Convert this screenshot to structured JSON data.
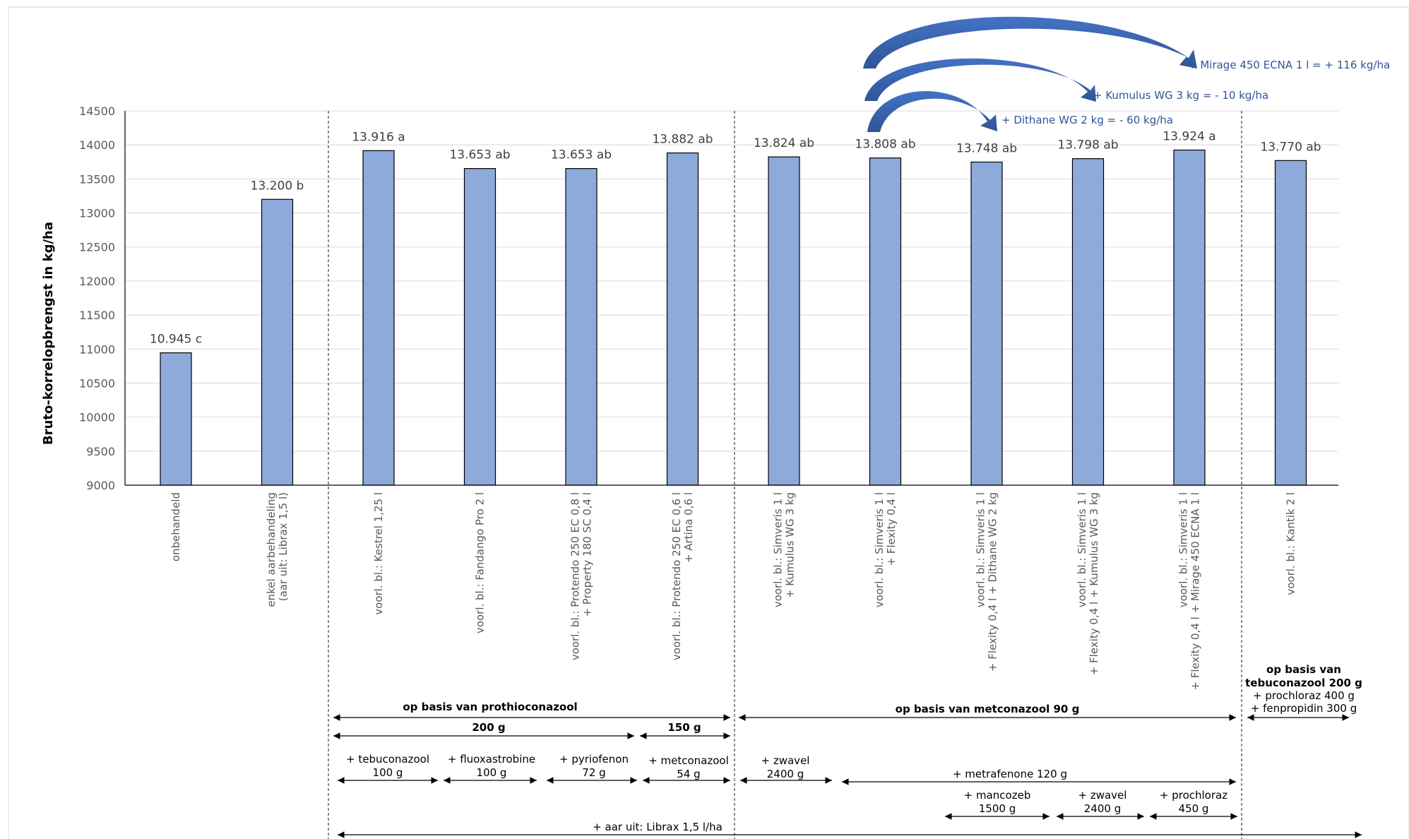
{
  "chart_data": {
    "type": "bar",
    "ylabel": "Bruto-korrelopbrengst in kg/ha",
    "ylim": [
      9000,
      14500
    ],
    "yticks": [
      "9000",
      "9500",
      "10000",
      "10500",
      "11000",
      "11500",
      "12000",
      "12500",
      "13000",
      "13500",
      "14000",
      "14500"
    ],
    "grid": true,
    "color": "#8eaadb",
    "categories": [
      [
        "onbehandeld"
      ],
      [
        "enkel aarbehandeling",
        "(aar uit: Librax 1,5 l)"
      ],
      [
        "voorl. bl.: Kestrel 1,25 l"
      ],
      [
        "voorl. bl.: Fandango Pro 2 l"
      ],
      [
        "voorl. bl.: Protendo 250 EC 0,8 l",
        "+ Property 180 SC 0,4 l"
      ],
      [
        "voorl. bl.: Protendo 250 EC 0,6 l",
        "+ Artina 0,6 l"
      ],
      [
        "voorl. bl.: Simveris 1 l",
        "+ Kumulus WG 3 kg"
      ],
      [
        "voorl. bl.: Simveris 1 l",
        "+ Flexity 0,4 l"
      ],
      [
        "voorl. bl.: Simveris 1 l",
        "+ Flexity 0,4 l + Dithane WG 2 kg"
      ],
      [
        "voorl. bl.: Simveris 1 l",
        "+ Flexity 0,4 l + Kumulus WG 3 kg"
      ],
      [
        "voorl. bl.: Simveris 1 l",
        "+ Flexity 0,4 l + Mirage 450 ECNA 1 l"
      ],
      [
        "voorl. bl.: Kantik 2 l"
      ]
    ],
    "values": [
      10945,
      13200,
      13916,
      13653,
      13653,
      13882,
      13824,
      13808,
      13748,
      13798,
      13924,
      13770
    ],
    "labels": [
      "10.945  c",
      "13.200  b",
      "13.916  a",
      "13.653  ab",
      "13.653  ab",
      "13.882  ab",
      "13.824  ab",
      "13.808  ab",
      "13.748  ab",
      "13.798  ab",
      "13.924  a",
      "13.770  ab"
    ],
    "arrow_annotations": [
      "+ Mirage 450 ECNA 1 l = + 116 kg/ha",
      "+ Kumulus WG 3 kg = - 10 kg/ha",
      "+ Dithane WG 2 kg = - 60 kg/ha"
    ]
  },
  "groups": {
    "prothio_title": "op basis van prothioconazool",
    "prothio_200": "200 g",
    "prothio_150": "150 g",
    "metcon_title": "op basis van metconazool 90 g",
    "tebu_title_1": "op basis van",
    "tebu_title_2": "tebuconazool 200 g",
    "tebu_line_1": "+ prochloraz 400 g",
    "tebu_line_2": "+ fenpropidin 300 g",
    "add_tebuconazool": [
      "+ tebuconazool",
      "100 g"
    ],
    "add_fluoxastrobine": [
      "+ fluoxastrobine",
      "100 g"
    ],
    "add_pyriofenon": [
      "+ pyriofenon",
      "72 g"
    ],
    "add_metconazool": [
      "+ metconazool",
      "54 g"
    ],
    "add_zwavel_1": [
      "+ zwavel",
      "2400 g"
    ],
    "add_metrafenone": "+ metrafenone 120 g",
    "add_mancozeb": [
      "+ mancozeb",
      "1500 g"
    ],
    "add_zwavel_2": [
      "+ zwavel",
      "2400 g"
    ],
    "add_prochloraz": [
      "+ prochloraz",
      "450 g"
    ],
    "aar_uit": "+ aar uit: Librax 1,5 l/ha"
  }
}
